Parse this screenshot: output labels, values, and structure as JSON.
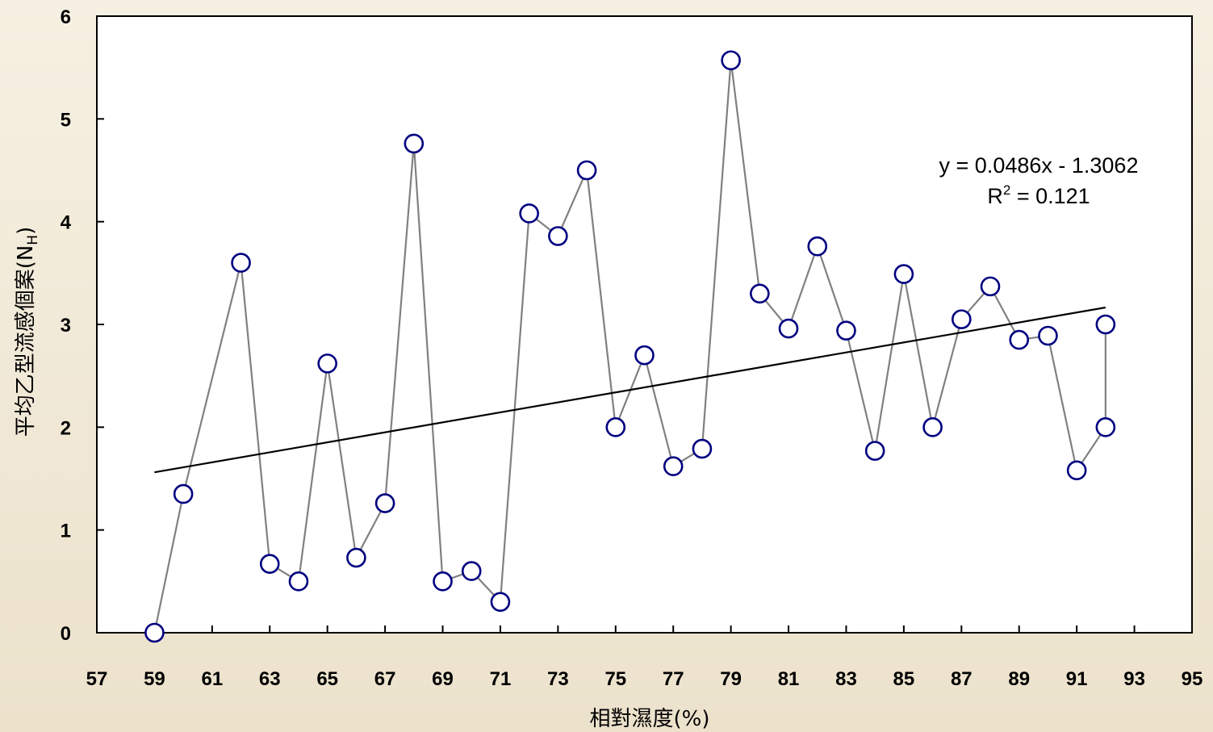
{
  "chart_data": {
    "type": "scatter",
    "title": "",
    "xlabel": "相對濕度(%)",
    "ylabel": "平均乙型流感個案(N",
    "ylabel_subscript": "H",
    "ylabel_close": ")",
    "xlim": [
      57,
      95
    ],
    "ylim": [
      0,
      6
    ],
    "x_ticks": [
      57,
      59,
      61,
      63,
      65,
      67,
      69,
      71,
      73,
      75,
      77,
      79,
      81,
      83,
      85,
      87,
      89,
      91,
      93,
      95
    ],
    "y_ticks": [
      0,
      1,
      2,
      3,
      4,
      5,
      6
    ],
    "grid": false,
    "series": [
      {
        "marker": "circle",
        "color": "#000080",
        "line_color": "#808080",
        "x": [
          59,
          60,
          62,
          63,
          64,
          65,
          66,
          67,
          68,
          69,
          70,
          71,
          72,
          73,
          74,
          75,
          76,
          77,
          78,
          79,
          80,
          81,
          82,
          83,
          84,
          85,
          86,
          87,
          88,
          89,
          90,
          91,
          92,
          92
        ],
        "y": [
          0.0,
          1.35,
          3.6,
          0.67,
          0.5,
          2.62,
          0.73,
          1.26,
          4.76,
          0.5,
          0.6,
          0.3,
          4.08,
          3.86,
          4.5,
          2.0,
          2.7,
          1.62,
          1.79,
          5.57,
          3.3,
          2.96,
          3.76,
          2.94,
          1.77,
          3.49,
          2.0,
          3.05,
          3.37,
          2.85,
          2.89,
          1.58,
          2.0,
          3.0
        ]
      }
    ],
    "trendline": {
      "slope": 0.0486,
      "intercept": -1.3062,
      "x_range": [
        59,
        92
      ],
      "color": "#000000",
      "equation_label": "y = 0.0486x - 1.3062",
      "r2_label_prefix": "R",
      "r2_label_sup": "2",
      "r2_label_value": " = 0.121"
    }
  }
}
